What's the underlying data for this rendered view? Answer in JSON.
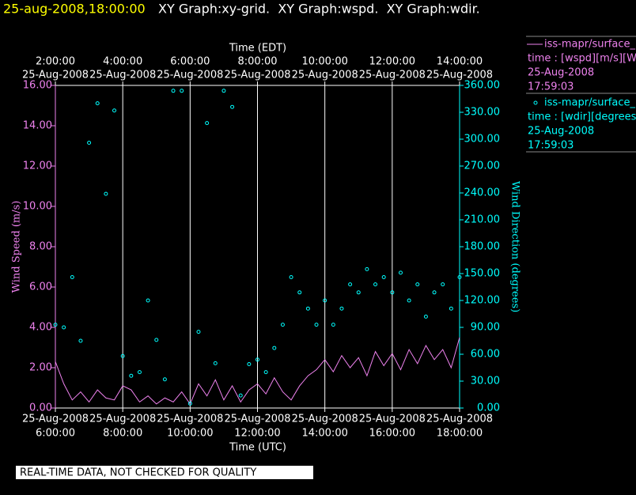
{
  "header": {
    "timestamp": "25-aug-2008,18:00:00",
    "title": "XY Graph:xy-grid.  XY Graph:wspd.  XY Graph:wdir."
  },
  "notice": "REAL-TIME DATA, NOT CHECKED FOR QUALITY",
  "chart_data": {
    "type": "scatter-line",
    "xlabel": "Time (UTC)",
    "x2label": "Time (EDT)",
    "ylabel": "Wind Speed (m/s)",
    "y2label": "Wind Direction (degrees)",
    "xlim": [
      6,
      18
    ],
    "xticks": [
      {
        "value": 6,
        "label": "6:00:00",
        "date": "25-Aug-2008"
      },
      {
        "value": 8,
        "label": "8:00:00",
        "date": "25-Aug-2008"
      },
      {
        "value": 10,
        "label": "10:00:00",
        "date": "25-Aug-2008"
      },
      {
        "value": 12,
        "label": "12:00:00",
        "date": "25-Aug-2008"
      },
      {
        "value": 14,
        "label": "14:00:00",
        "date": "25-Aug-2008"
      },
      {
        "value": 16,
        "label": "16:00:00",
        "date": "25-Aug-2008"
      },
      {
        "value": 18,
        "label": "18:00:00",
        "date": "25-Aug-2008"
      }
    ],
    "x2ticks": [
      {
        "value": 6,
        "label": "2:00:00",
        "date": "25-Aug-2008"
      },
      {
        "value": 8,
        "label": "4:00:00",
        "date": "25-Aug-2008"
      },
      {
        "value": 10,
        "label": "6:00:00",
        "date": "25-Aug-2008"
      },
      {
        "value": 12,
        "label": "8:00:00",
        "date": "25-Aug-2008"
      },
      {
        "value": 14,
        "label": "10:00:00",
        "date": "25-Aug-2008"
      },
      {
        "value": 16,
        "label": "12:00:00",
        "date": "25-Aug-2008"
      },
      {
        "value": 18,
        "label": "14:00:00",
        "date": "25-Aug-2008"
      }
    ],
    "ylim": [
      0,
      16
    ],
    "yticks": [
      {
        "value": 0,
        "label": "0.00"
      },
      {
        "value": 2,
        "label": "2.00"
      },
      {
        "value": 4,
        "label": "4.00"
      },
      {
        "value": 6,
        "label": "6.00"
      },
      {
        "value": 8,
        "label": "8.00"
      },
      {
        "value": 10,
        "label": "10.00"
      },
      {
        "value": 12,
        "label": "12.00"
      },
      {
        "value": 14,
        "label": "14.00"
      },
      {
        "value": 16,
        "label": "16.00"
      }
    ],
    "y2lim": [
      0,
      360
    ],
    "y2ticks": [
      {
        "value": 0,
        "label": "0.00"
      },
      {
        "value": 30,
        "label": "30.00"
      },
      {
        "value": 60,
        "label": "60.00"
      },
      {
        "value": 90,
        "label": "90.00"
      },
      {
        "value": 120,
        "label": "120.00"
      },
      {
        "value": 150,
        "label": "150.00"
      },
      {
        "value": 180,
        "label": "180.00"
      },
      {
        "value": 210,
        "label": "210.00"
      },
      {
        "value": 240,
        "label": "240.00"
      },
      {
        "value": 270,
        "label": "270.00"
      },
      {
        "value": 300,
        "label": "300.00"
      },
      {
        "value": 330,
        "label": "330.00"
      },
      {
        "value": 360,
        "label": "360.00"
      }
    ],
    "grid": true,
    "x": [
      6,
      6.25,
      6.5,
      6.75,
      7,
      7.25,
      7.5,
      7.75,
      8,
      8.25,
      8.5,
      8.75,
      9,
      9.25,
      9.5,
      9.75,
      10,
      10.25,
      10.5,
      10.75,
      11,
      11.25,
      11.5,
      11.75,
      12,
      12.25,
      12.5,
      12.75,
      13,
      13.25,
      13.5,
      13.75,
      14,
      14.25,
      14.5,
      14.75,
      15,
      15.25,
      15.5,
      15.75,
      16,
      16.25,
      16.5,
      16.75,
      17,
      17.25,
      17.5,
      17.75,
      18
    ],
    "series": [
      {
        "name": "iss-mapr/surface_m",
        "legend_lines": [
          "time : [wspd][m/s][Wind",
          "25-Aug-2008",
          "17:59:03"
        ],
        "color": "#ee82ee",
        "style": "line",
        "axis": "y",
        "values": [
          2.3,
          1.2,
          0.4,
          0.8,
          0.3,
          0.9,
          0.5,
          0.4,
          1.1,
          0.9,
          0.3,
          0.6,
          0.2,
          0.5,
          0.3,
          0.8,
          0.2,
          1.2,
          0.6,
          1.4,
          0.4,
          1.1,
          0.3,
          0.9,
          1.2,
          0.7,
          1.5,
          0.8,
          0.4,
          1.1,
          1.6,
          1.9,
          2.4,
          1.8,
          2.6,
          2.0,
          2.5,
          1.6,
          2.8,
          2.1,
          2.7,
          1.9,
          2.9,
          2.2,
          3.1,
          2.4,
          2.9,
          2.0,
          3.5
        ]
      },
      {
        "name": "iss-mapr/surface_m",
        "legend_lines": [
          "time : [wdir][degrees][V",
          "25-Aug-2008",
          "17:59:03"
        ],
        "color": "#00ffff",
        "style": "points",
        "axis": "y2",
        "values": [
          93,
          90,
          146,
          75,
          296,
          340,
          239,
          332,
          58,
          36,
          40,
          120,
          76,
          32,
          354,
          354,
          5,
          85,
          318,
          50,
          354,
          336,
          14,
          49,
          54,
          40,
          67,
          93,
          146,
          129,
          111,
          93,
          120,
          93,
          111,
          138,
          129,
          155,
          138,
          146,
          129,
          151,
          120,
          138,
          102,
          129,
          138,
          111,
          146
        ]
      }
    ]
  }
}
